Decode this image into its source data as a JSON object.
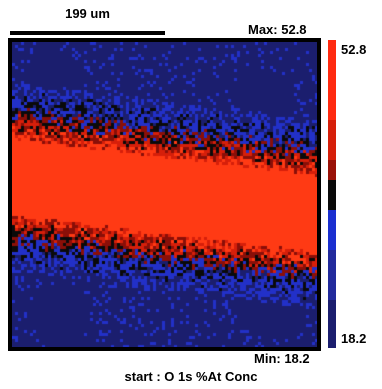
{
  "scale_bar": {
    "label": "199 um"
  },
  "range": {
    "max_label": "Max: 52.8",
    "min_label": "Min: 18.2",
    "max_value": "52.8",
    "min_value": "18.2"
  },
  "caption": "start : O 1s %At Conc",
  "colors": {
    "scale": [
      "#1b1e6e",
      "#2230c8",
      "#0a0a0a",
      "#8a0f08",
      "#d61f0a",
      "#ff3a14"
    ],
    "frame": "#000000"
  }
}
